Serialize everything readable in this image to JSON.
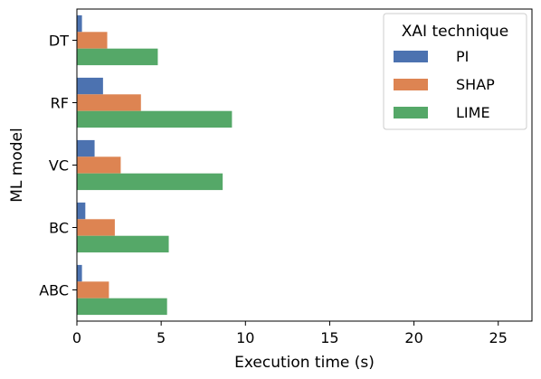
{
  "chart_data": {
    "type": "bar",
    "orientation": "horizontal",
    "categories": [
      "DT",
      "RF",
      "VC",
      "BC",
      "ABC"
    ],
    "series": [
      {
        "name": "PI",
        "values": [
          0.3,
          1.55,
          1.05,
          0.5,
          0.3
        ],
        "color": "#4c72b0"
      },
      {
        "name": "SHAP",
        "values": [
          1.8,
          3.8,
          2.6,
          2.25,
          1.9
        ],
        "color": "#dd8452"
      },
      {
        "name": "LIME",
        "values": [
          4.8,
          9.2,
          8.65,
          5.45,
          5.35
        ],
        "color": "#55a868"
      }
    ],
    "xlabel": "Execution time (s)",
    "ylabel": "ML model",
    "xlim": [
      0,
      27
    ],
    "xticks": [
      0,
      5,
      10,
      15,
      20,
      25
    ],
    "legend": {
      "title": "XAI technique",
      "position": "top-right"
    },
    "grid": false
  }
}
